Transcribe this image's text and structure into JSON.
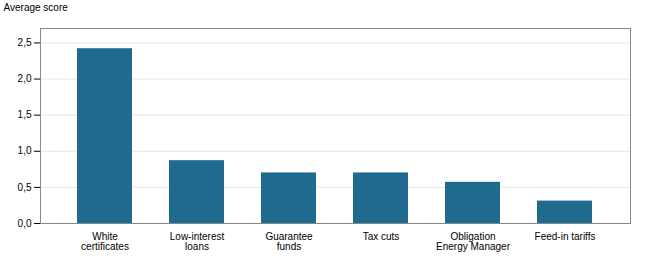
{
  "chart_data": {
    "type": "bar",
    "y_label": "Average score",
    "categories": [
      "White\ncertificates",
      "Low-interest\nloans",
      "Guarantee\nfunds",
      "Tax cuts",
      "Obligation\nEnergy Manager",
      "Feed-in tariffs"
    ],
    "values": [
      2.42,
      0.87,
      0.7,
      0.7,
      0.57,
      0.31
    ],
    "color": "#1f6a8e",
    "ylim": [
      0,
      2.7
    ],
    "yticks": [
      {
        "value": 0.0,
        "label": "0,0"
      },
      {
        "value": 0.5,
        "label": "0,5"
      },
      {
        "value": 1.0,
        "label": "1,0"
      },
      {
        "value": 1.5,
        "label": "1,5"
      },
      {
        "value": 2.0,
        "label": "2,0"
      },
      {
        "value": 2.5,
        "label": "2,5"
      }
    ],
    "grid": true
  }
}
